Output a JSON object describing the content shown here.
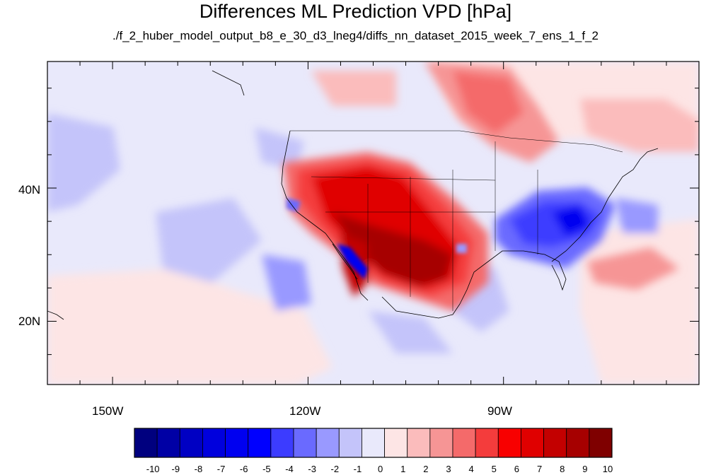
{
  "title": "Differences ML Prediction VPD [hPa]",
  "subtitle": "./f_2_huber_model_output_b8_e_30_d3_lneg4/diffs_nn_dataset_2015_week_7_ens_1_f_2",
  "axes": {
    "lat_ticks": [
      "40N",
      "20N"
    ],
    "lon_ticks": [
      "150W",
      "120W",
      "90W"
    ]
  },
  "colorbar": {
    "labels": [
      "-10",
      "-9",
      "-8",
      "-7",
      "-6",
      "-5",
      "-4",
      "-3",
      "-2",
      "-1",
      "0",
      "1",
      "2",
      "3",
      "4",
      "5",
      "6",
      "7",
      "8",
      "9",
      "10"
    ],
    "colors": [
      "#00007f",
      "#0000a5",
      "#0000c3",
      "#0000dd",
      "#0000f0",
      "#0000ff",
      "#3c3cff",
      "#6a6aff",
      "#9999ff",
      "#c4c4fa",
      "#e9e9fb",
      "#fde5e5",
      "#fbbcbc",
      "#f69595",
      "#f46a6a",
      "#f43c3c",
      "#f80000",
      "#e00000",
      "#c30000",
      "#a60000",
      "#7f0000"
    ]
  },
  "chart_data": {
    "type": "heatmap",
    "title": "Differences ML Prediction VPD [hPa]",
    "subtitle": "./f_2_huber_model_output_b8_e_30_d3_lneg4/diffs_nn_dataset_2015_week_7_ens_1_f_2",
    "x_ticks": [
      "150W",
      "120W",
      "90W"
    ],
    "y_ticks": [
      "40N",
      "20N"
    ],
    "xlim": [
      -160,
      -60
    ],
    "ylim": [
      10.5,
      59
    ],
    "value_range": [
      -10,
      10
    ]
  }
}
